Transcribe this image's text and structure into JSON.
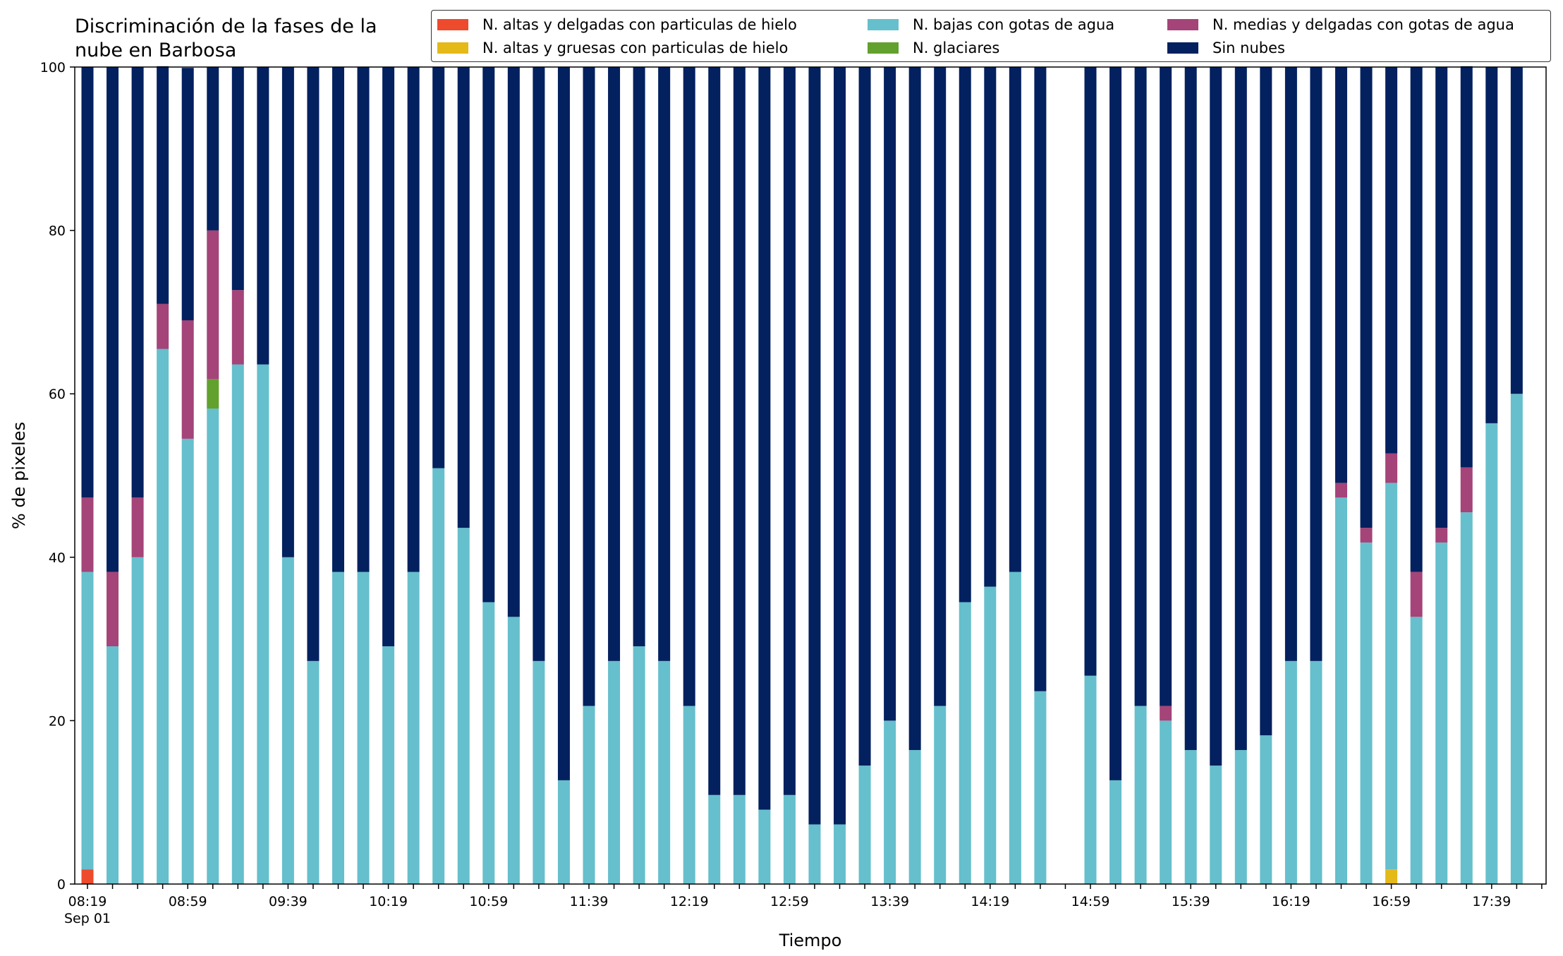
{
  "chart_data": {
    "type": "bar",
    "stacked": true,
    "title_lines": [
      "Discriminación de la fases de la",
      "nube en Barbosa"
    ],
    "xlabel": "Tiempo",
    "ylabel": "% de pixeles",
    "ylim": [
      0,
      100
    ],
    "yticks": [
      0,
      20,
      40,
      60,
      80,
      100
    ],
    "x_start": "08:19",
    "x_interval_minutes": 10,
    "x_count": 59,
    "x_tick_labels": [
      "08:19",
      "08:59",
      "09:39",
      "10:19",
      "10:59",
      "11:39",
      "12:19",
      "12:59",
      "13:39",
      "14:19",
      "14:59",
      "15:39",
      "16:19",
      "16:59",
      "17:39"
    ],
    "x_tick_every": 4,
    "x_date_label": "Sep 01",
    "legend_position": "top-right",
    "grid": false,
    "series": [
      {
        "name": "N. altas y delgadas con particulas de hielo",
        "color": "#ee4a2c",
        "values": [
          1.8,
          0,
          0,
          0,
          0,
          0,
          0,
          0,
          0,
          0,
          0,
          0,
          0,
          0,
          0,
          0,
          0,
          0,
          0,
          0,
          0,
          0,
          0,
          0,
          0,
          0,
          0,
          0,
          0,
          0,
          0,
          0,
          0,
          0,
          0,
          0,
          0,
          0,
          0,
          0,
          0,
          0,
          0,
          0,
          0,
          0,
          0,
          0,
          0,
          0,
          0,
          0,
          0,
          0,
          0,
          0,
          0,
          0,
          0
        ]
      },
      {
        "name": "N. altas y gruesas con particulas de hielo",
        "color": "#e4b918",
        "values": [
          0,
          0,
          0,
          0,
          0,
          0,
          0,
          0,
          0,
          0,
          0,
          0,
          0,
          0,
          0,
          0,
          0,
          0,
          0,
          0,
          0,
          0,
          0,
          0,
          0,
          0,
          0,
          0,
          0,
          0,
          0,
          0,
          0,
          0,
          0,
          0,
          0,
          0,
          0,
          0,
          0,
          0,
          0,
          0,
          0,
          0,
          0,
          0,
          0,
          0,
          0,
          0,
          1.8,
          0,
          0,
          0,
          0,
          0,
          0
        ]
      },
      {
        "name": "N. bajas con gotas de agua",
        "color": "#66bfcc",
        "values": [
          36.4,
          29.1,
          40.0,
          65.5,
          54.5,
          58.2,
          63.6,
          63.6,
          40.0,
          27.3,
          38.2,
          38.2,
          29.1,
          38.2,
          50.9,
          43.6,
          34.5,
          32.7,
          27.3,
          12.7,
          21.8,
          27.3,
          29.1,
          27.3,
          21.8,
          10.9,
          10.9,
          9.1,
          10.9,
          7.3,
          7.3,
          14.5,
          20.0,
          16.4,
          21.8,
          34.5,
          36.4,
          38.2,
          23.6,
          0,
          25.5,
          12.7,
          21.8,
          20.0,
          16.4,
          14.5,
          16.4,
          18.2,
          27.3,
          27.3,
          47.3,
          41.8,
          47.3,
          32.7,
          41.8,
          45.5,
          56.4,
          60.0,
          0
        ]
      },
      {
        "name": "N. glaciares",
        "color": "#62a12e",
        "values": [
          0,
          0,
          0,
          0,
          0,
          3.6,
          0,
          0,
          0,
          0,
          0,
          0,
          0,
          0,
          0,
          0,
          0,
          0,
          0,
          0,
          0,
          0,
          0,
          0,
          0,
          0,
          0,
          0,
          0,
          0,
          0,
          0,
          0,
          0,
          0,
          0,
          0,
          0,
          0,
          0,
          0,
          0,
          0,
          0,
          0,
          0,
          0,
          0,
          0,
          0,
          0,
          0,
          0,
          0,
          0,
          0,
          0,
          0,
          0
        ]
      },
      {
        "name": "N. medias y delgadas con gotas de agua",
        "color": "#a44478",
        "values": [
          9.1,
          9.1,
          7.3,
          5.5,
          14.5,
          18.2,
          9.1,
          0,
          0,
          0,
          0,
          0,
          0,
          0,
          0,
          0,
          0,
          0,
          0,
          0,
          0,
          0,
          0,
          0,
          0,
          0,
          0,
          0,
          0,
          0,
          0,
          0,
          0,
          0,
          0,
          0,
          0,
          0,
          0,
          0,
          0,
          0,
          0,
          1.8,
          0,
          0,
          0,
          0,
          0,
          0,
          1.8,
          1.8,
          3.6,
          5.5,
          1.8,
          5.5,
          0,
          0,
          0
        ]
      },
      {
        "name": "Sin nubes",
        "color": "#03205f",
        "values": [
          52.7,
          61.8,
          52.7,
          29.1,
          30.9,
          20.0,
          27.3,
          36.4,
          60.0,
          72.7,
          61.8,
          61.8,
          70.9,
          61.8,
          49.1,
          56.4,
          65.5,
          67.3,
          72.7,
          87.3,
          78.2,
          72.7,
          70.9,
          72.7,
          78.2,
          89.1,
          89.1,
          90.9,
          89.1,
          92.7,
          92.7,
          85.5,
          80.0,
          83.6,
          78.2,
          65.5,
          63.6,
          61.8,
          76.4,
          0,
          74.5,
          87.3,
          78.2,
          78.2,
          83.6,
          85.5,
          83.6,
          81.8,
          72.7,
          72.7,
          50.9,
          56.4,
          47.3,
          61.8,
          56.4,
          49.1,
          43.6,
          40.0,
          0
        ]
      }
    ]
  }
}
